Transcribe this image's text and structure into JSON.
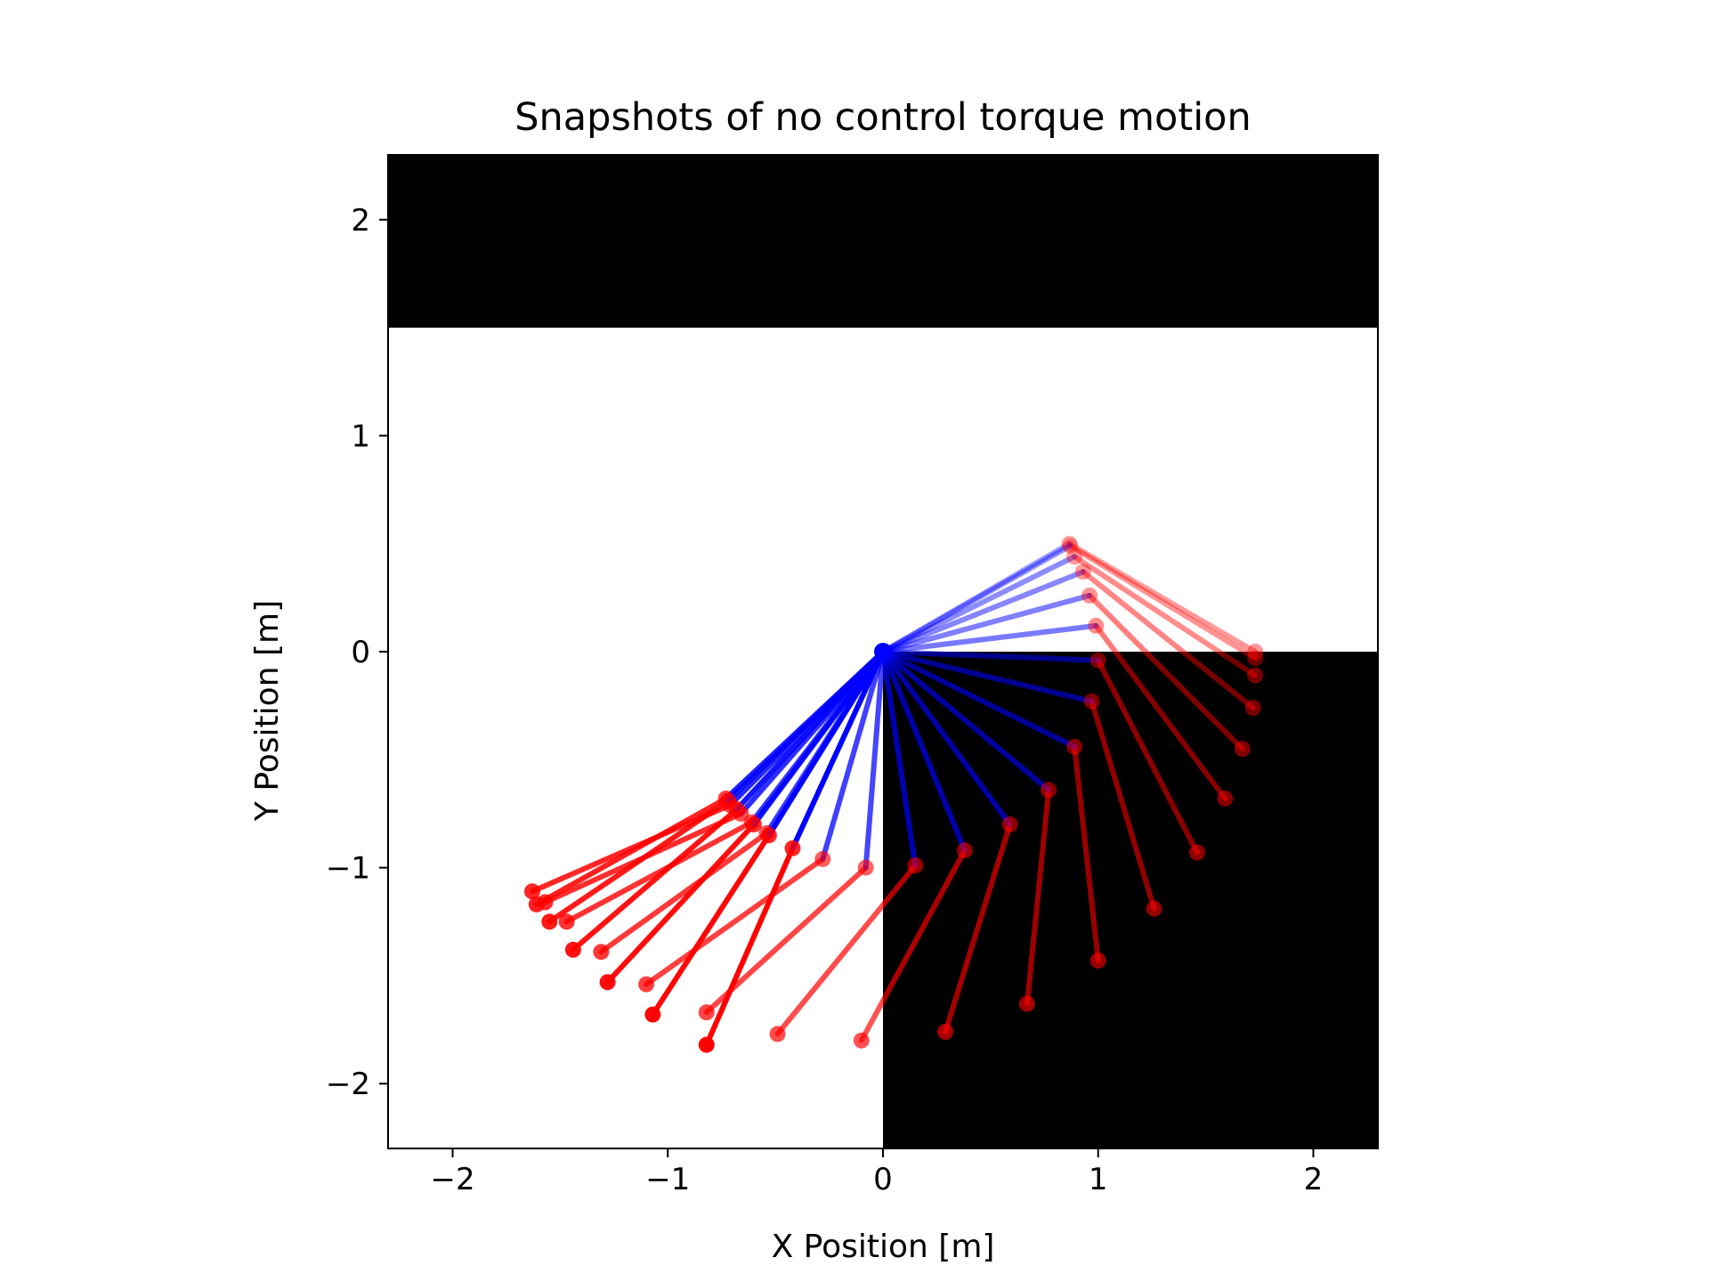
{
  "chart_data": {
    "type": "scatter",
    "title": "Snapshots of no control torque motion",
    "xlabel": "X Position [m]",
    "ylabel": "Y Position [m]",
    "xlim": [
      -2.3,
      2.3
    ],
    "ylim": [
      -2.3,
      2.3
    ],
    "xticks": [
      -2,
      -1,
      0,
      1,
      2
    ],
    "yticks": [
      -2,
      -1,
      0,
      1,
      2
    ],
    "x_tick_labels": [
      "−2",
      "−1",
      "0",
      "1",
      "2"
    ],
    "y_tick_labels": [
      "−2",
      "−1",
      "0",
      "1",
      "2"
    ],
    "grid": false,
    "colors": {
      "link1": "#0000ff",
      "link2": "#ff0000",
      "obstacle": "#000000"
    },
    "obstacles": [
      {
        "x": [
          -2.3,
          2.3
        ],
        "y": [
          1.5,
          2.3
        ]
      },
      {
        "x": [
          0,
          2.3
        ],
        "y": [
          -2.3,
          0
        ]
      }
    ],
    "base": [
      0,
      0
    ],
    "snapshots": [
      {
        "elbow": [
          0.866,
          0.5
        ],
        "tip": [
          1.73,
          0.0
        ]
      },
      {
        "elbow": [
          0.87,
          0.49
        ],
        "tip": [
          1.73,
          -0.03
        ]
      },
      {
        "elbow": [
          0.89,
          0.44
        ],
        "tip": [
          1.73,
          -0.11
        ]
      },
      {
        "elbow": [
          0.93,
          0.37
        ],
        "tip": [
          1.72,
          -0.26
        ]
      },
      {
        "elbow": [
          0.96,
          0.26
        ],
        "tip": [
          1.67,
          -0.45
        ]
      },
      {
        "elbow": [
          0.99,
          0.12
        ],
        "tip": [
          1.59,
          -0.68
        ]
      },
      {
        "elbow": [
          1.0,
          -0.04
        ],
        "tip": [
          1.46,
          -0.93
        ]
      },
      {
        "elbow": [
          0.97,
          -0.23
        ],
        "tip": [
          1.26,
          -1.19
        ]
      },
      {
        "elbow": [
          0.89,
          -0.44
        ],
        "tip": [
          1.0,
          -1.43
        ]
      },
      {
        "elbow": [
          0.77,
          -0.64
        ],
        "tip": [
          0.67,
          -1.63
        ]
      },
      {
        "elbow": [
          0.59,
          -0.8
        ],
        "tip": [
          0.29,
          -1.76
        ]
      },
      {
        "elbow": [
          0.38,
          -0.92
        ],
        "tip": [
          -0.1,
          -1.8
        ]
      },
      {
        "elbow": [
          0.15,
          -0.99
        ],
        "tip": [
          -0.49,
          -1.77
        ]
      },
      {
        "elbow": [
          -0.08,
          -1.0
        ],
        "tip": [
          -0.82,
          -1.67
        ]
      },
      {
        "elbow": [
          -0.28,
          -0.96
        ],
        "tip": [
          -1.1,
          -1.54
        ]
      },
      {
        "elbow": [
          -0.54,
          -0.84
        ],
        "tip": [
          -1.31,
          -1.39
        ]
      },
      {
        "elbow": [
          -0.61,
          -0.79
        ],
        "tip": [
          -1.47,
          -1.25
        ]
      },
      {
        "elbow": [
          -0.66,
          -0.75
        ],
        "tip": [
          -1.57,
          -1.16
        ]
      },
      {
        "elbow": [
          -0.71,
          -0.71
        ],
        "tip": [
          -1.63,
          -1.11
        ]
      },
      {
        "elbow": [
          -0.73,
          -0.68
        ],
        "tip": [
          -1.61,
          -1.17
        ]
      },
      {
        "elbow": [
          -0.72,
          -0.69
        ],
        "tip": [
          -1.55,
          -1.25
        ]
      },
      {
        "elbow": [
          -0.68,
          -0.73
        ],
        "tip": [
          -1.44,
          -1.38
        ]
      },
      {
        "elbow": [
          -0.6,
          -0.8
        ],
        "tip": [
          -1.28,
          -1.53
        ]
      },
      {
        "elbow": [
          -0.53,
          -0.85
        ],
        "tip": [
          -1.07,
          -1.68
        ]
      },
      {
        "elbow": [
          -0.42,
          -0.91
        ],
        "tip": [
          -0.82,
          -1.82
        ]
      }
    ]
  }
}
